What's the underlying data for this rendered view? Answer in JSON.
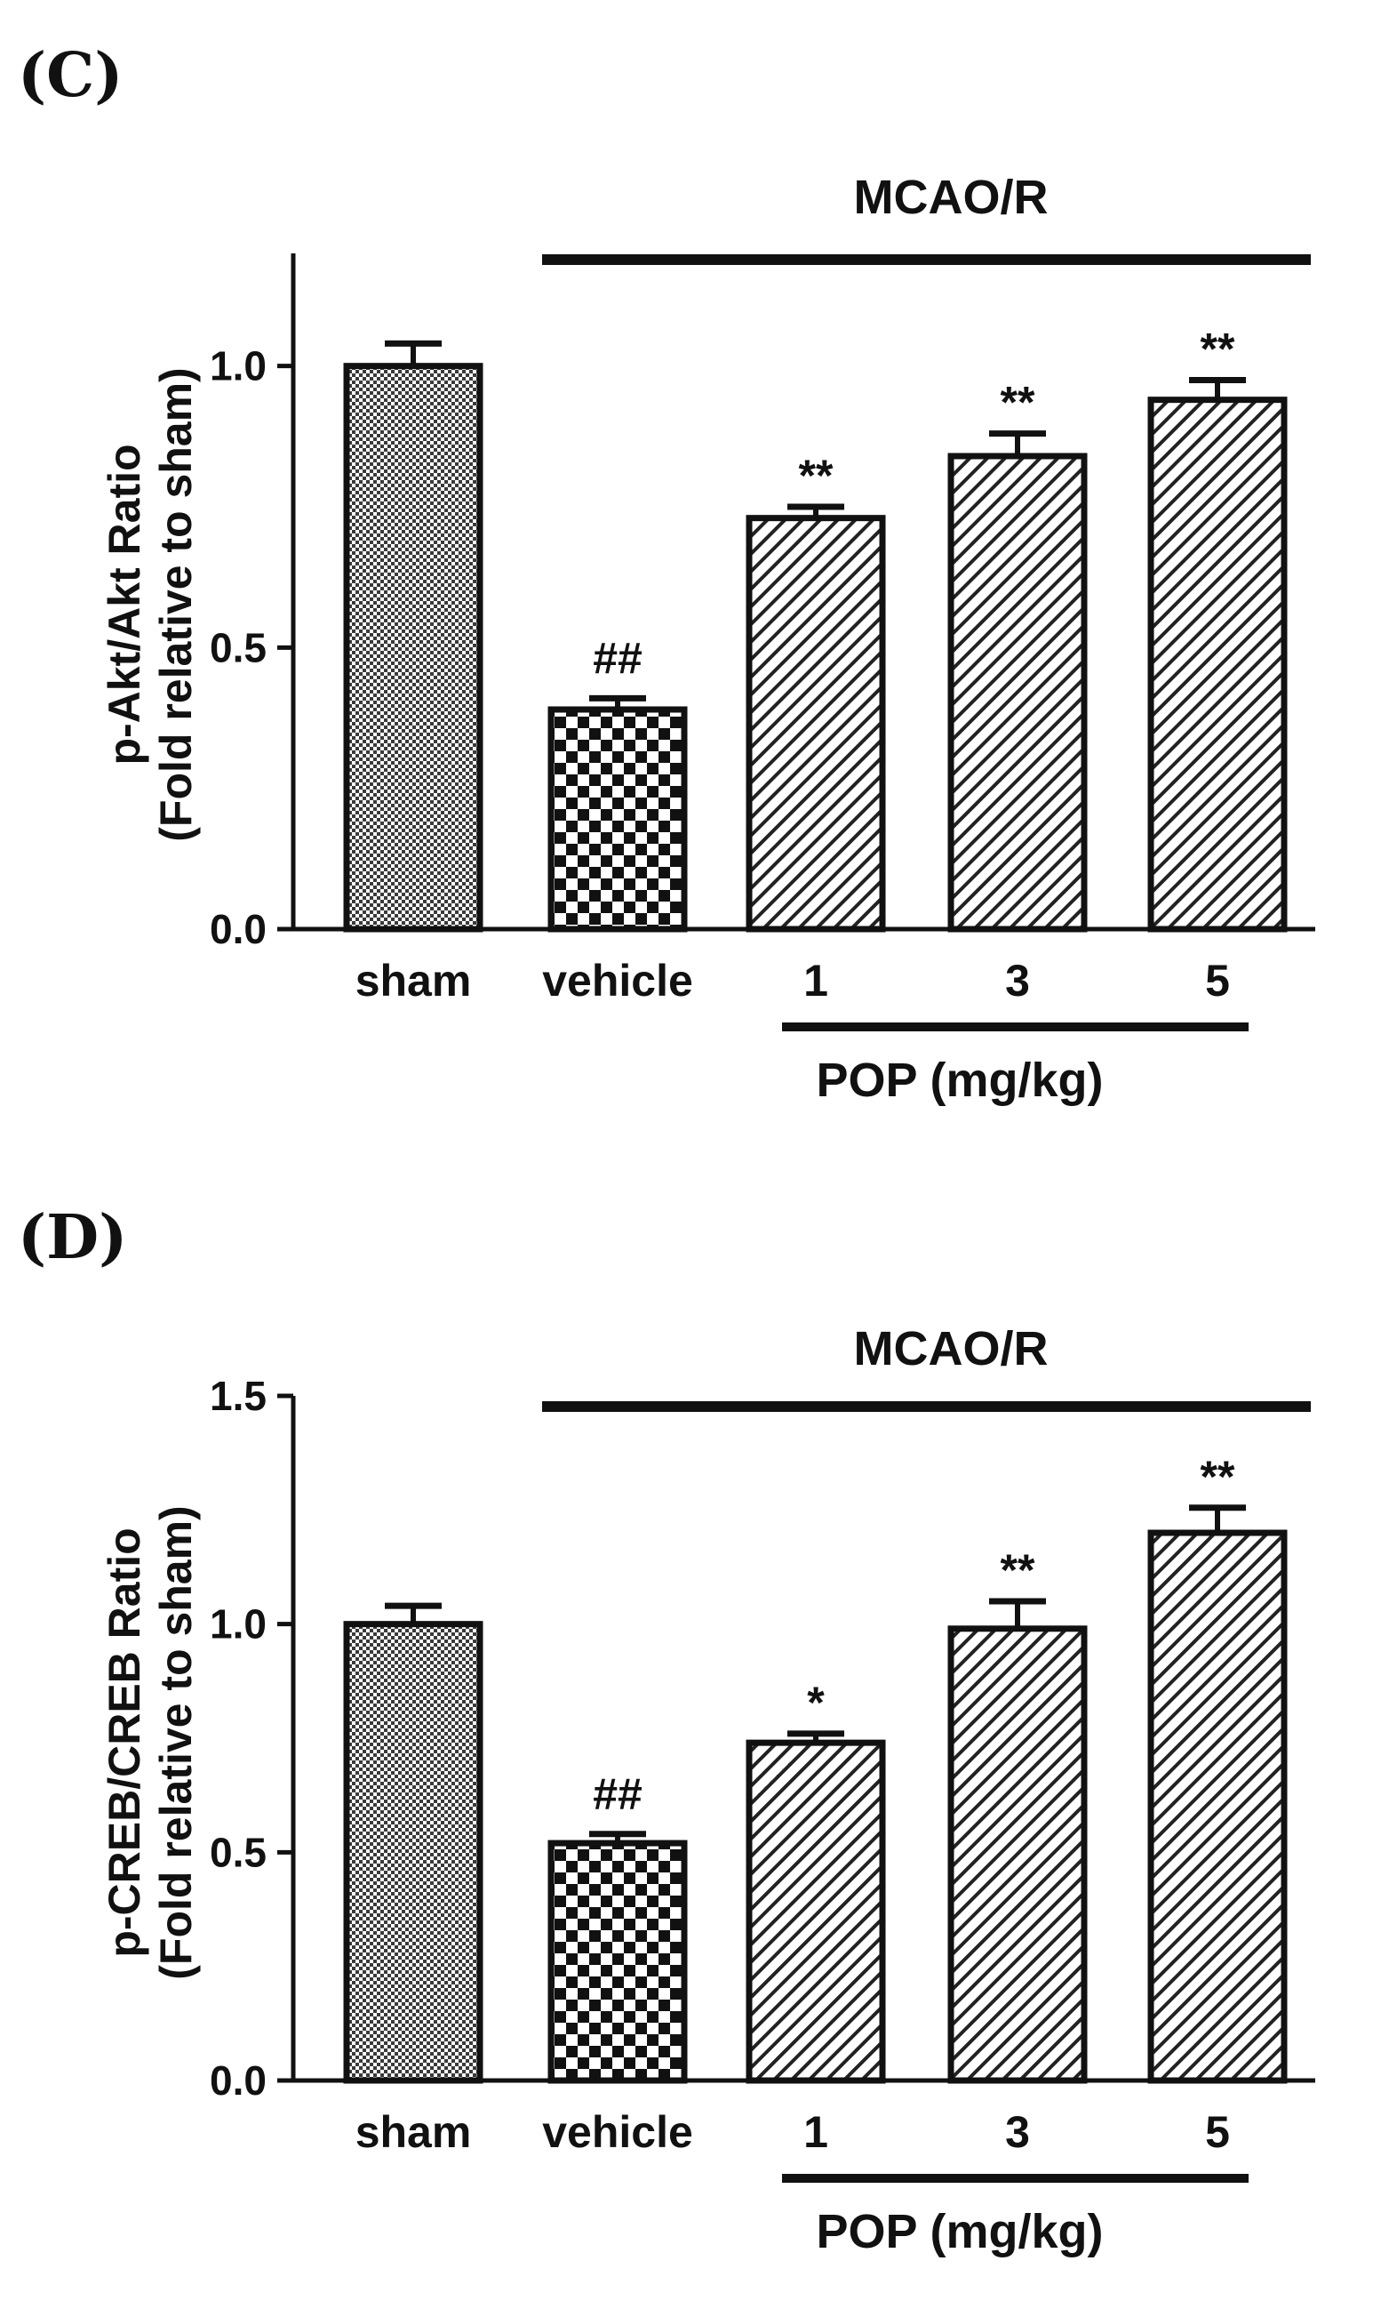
{
  "chart_data": [
    {
      "type": "bar",
      "panel_label": "(C)",
      "group_label": "MCAO/R",
      "treatment_label": "POP (mg/kg)",
      "ylabel_line1": "p-Akt/Akt Ratio",
      "ylabel_line2": "(Fold relative to sham)",
      "categories": [
        "sham",
        "vehicle",
        "1",
        "3",
        "5"
      ],
      "values": [
        1.0,
        0.39,
        0.73,
        0.84,
        0.94
      ],
      "errors": [
        0.04,
        0.02,
        0.02,
        0.04,
        0.035
      ],
      "significance": [
        "",
        "##",
        "**",
        "**",
        "**"
      ],
      "patterns": [
        "fine-checker",
        "checker",
        "hatch",
        "hatch",
        "hatch"
      ],
      "ylim": [
        0,
        1.2
      ],
      "yticks": [
        0.0,
        0.5,
        1.0
      ],
      "ytick_labels": [
        "0.0",
        "0.5",
        "1.0"
      ]
    },
    {
      "type": "bar",
      "panel_label": "(D)",
      "group_label": "MCAO/R",
      "treatment_label": "POP (mg/kg)",
      "ylabel_line1": "p-CREB/CREB Ratio",
      "ylabel_line2": "(Fold relative to sham)",
      "categories": [
        "sham",
        "vehicle",
        "1",
        "3",
        "5"
      ],
      "values": [
        1.0,
        0.52,
        0.74,
        0.99,
        1.2
      ],
      "errors": [
        0.04,
        0.02,
        0.02,
        0.06,
        0.055
      ],
      "significance": [
        "",
        "##",
        "*",
        "**",
        "**"
      ],
      "patterns": [
        "fine-checker",
        "checker",
        "hatch",
        "hatch",
        "hatch"
      ],
      "ylim": [
        0,
        1.5
      ],
      "yticks": [
        0.0,
        0.5,
        1.0,
        1.5
      ],
      "ytick_labels": [
        "0.0",
        "0.5",
        "1.0",
        "1.5"
      ]
    }
  ]
}
